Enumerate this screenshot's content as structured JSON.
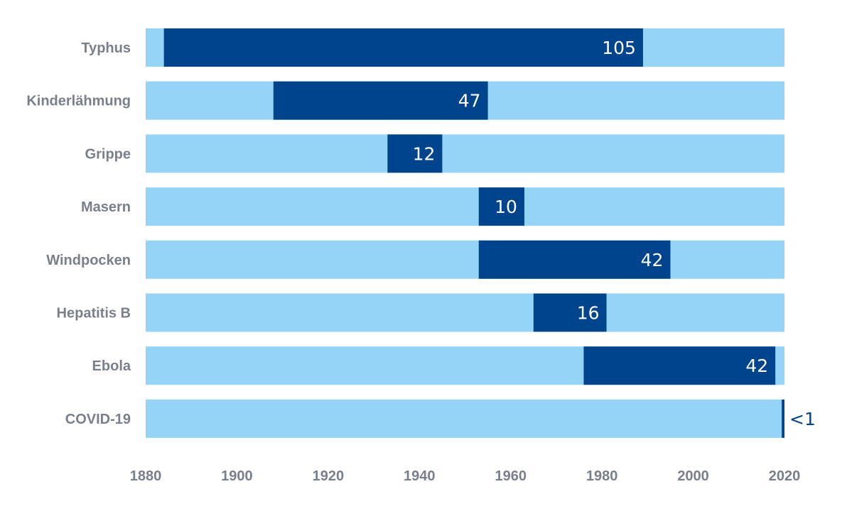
{
  "chart_data": {
    "type": "bar",
    "orientation": "horizontal",
    "title": "",
    "xlabel": "",
    "ylabel": "",
    "xlim": [
      1880,
      2020
    ],
    "x_ticks": [
      "1880",
      "1900",
      "1920",
      "1940",
      "1960",
      "1980",
      "2000",
      "2020"
    ],
    "grid": false,
    "legend": "none",
    "colors": {
      "track": "#93d4f7",
      "bar": "#00448e",
      "label_inside": "#ffffff",
      "label_outside": "#00448e",
      "category_text": "#7a7f8c",
      "tick_text": "#7a7f8c"
    },
    "categories": [
      "Typhus",
      "Kinderlähmung",
      "Grippe",
      "Masern",
      "Windpocken",
      "Hepatitis B",
      "Ebola",
      "COVID-19"
    ],
    "series": [
      {
        "values": [
          {
            "start": 1884,
            "end": 1989,
            "label": "105"
          },
          {
            "start": 1908,
            "end": 1955,
            "label": "47"
          },
          {
            "start": 1933,
            "end": 1945,
            "label": "12"
          },
          {
            "start": 1953,
            "end": 1963,
            "label": "10"
          },
          {
            "start": 1953,
            "end": 1995,
            "label": "42"
          },
          {
            "start": 1965,
            "end": 1981,
            "label": "16"
          },
          {
            "start": 1976,
            "end": 2018,
            "label": "42"
          },
          {
            "start": 2019.4,
            "end": 2020,
            "label": "<1"
          }
        ]
      }
    ]
  }
}
